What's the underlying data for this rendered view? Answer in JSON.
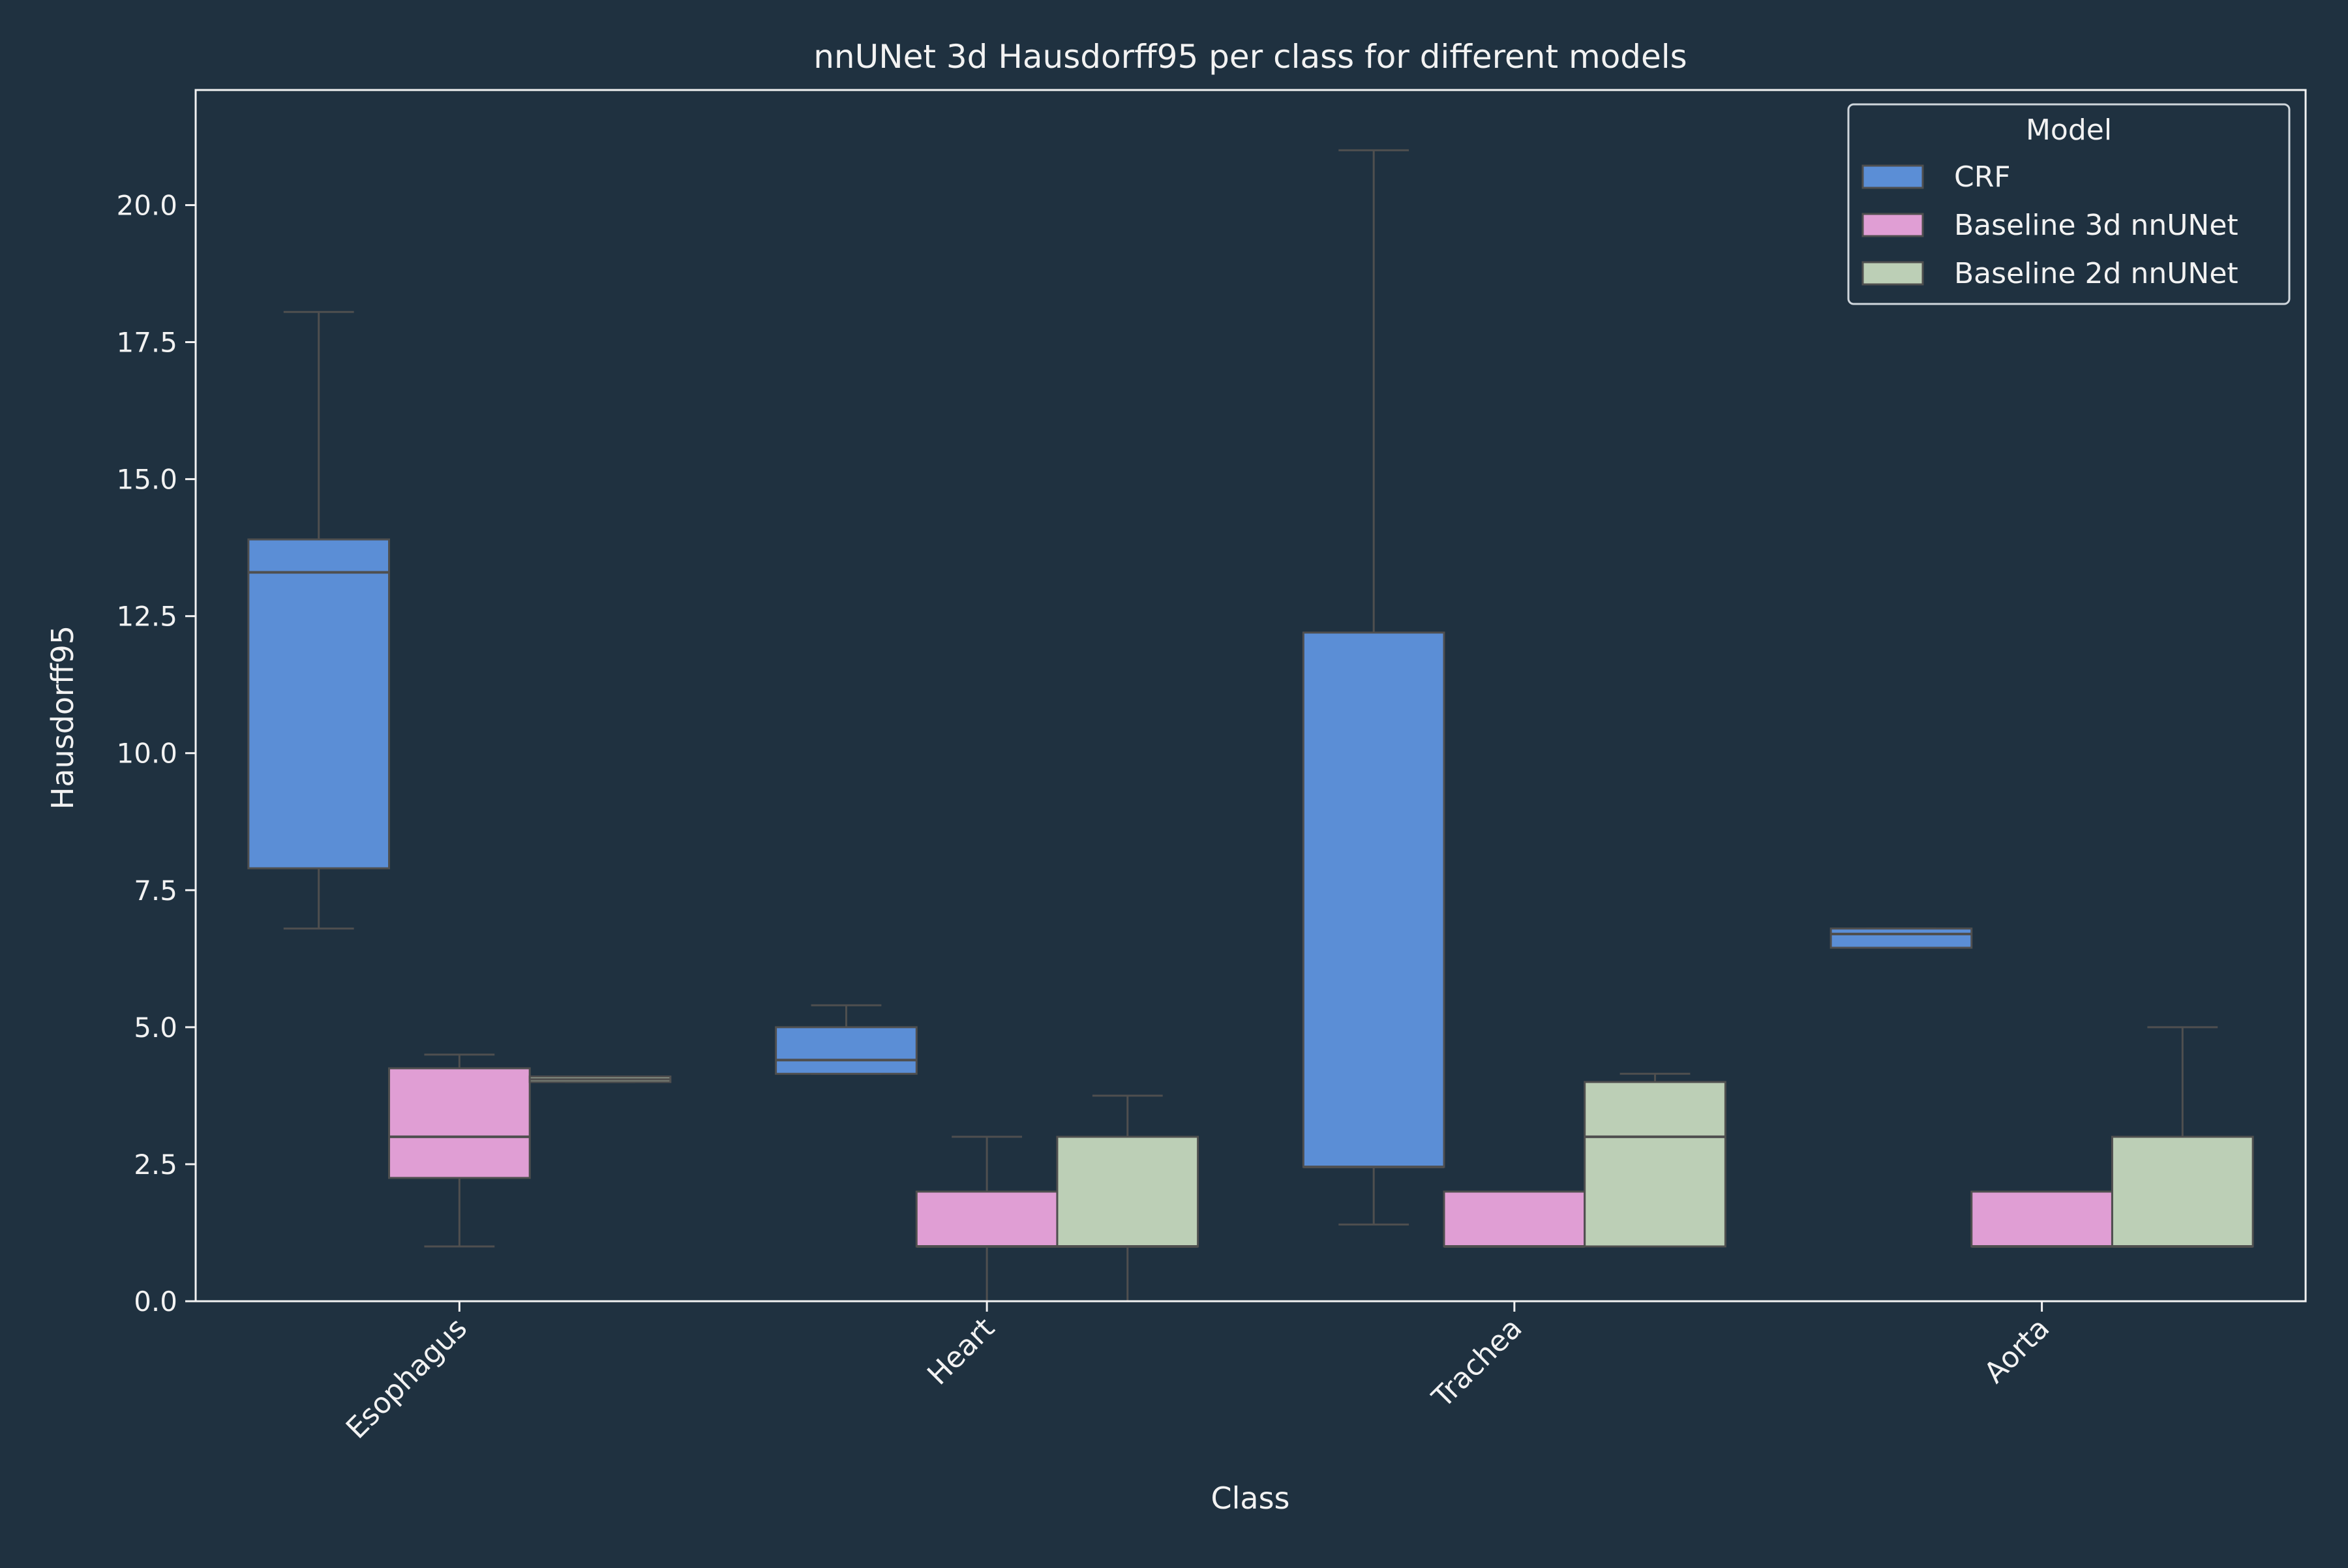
{
  "chart_data": {
    "type": "box",
    "title": "nnUNet 3d Hausdorff95 per class for different models",
    "xlabel": "Class",
    "ylabel": "Hausdorff95",
    "categories": [
      "Esophagus",
      "Heart",
      "Trachea",
      "Aorta"
    ],
    "ylim": [
      0,
      22.1
    ],
    "yticks": [
      0.0,
      2.5,
      5.0,
      7.5,
      10.0,
      12.5,
      15.0,
      17.5,
      20.0
    ],
    "ytick_labels": [
      "0.0",
      "2.5",
      "5.0",
      "7.5",
      "10.0",
      "12.5",
      "15.0",
      "17.5",
      "20.0"
    ],
    "legend": {
      "title": "Model",
      "position": "top-right"
    },
    "series": [
      {
        "name": "CRF",
        "color": "#5b8ed6",
        "boxes": [
          {
            "whisker_low": 6.8,
            "q1": 7.9,
            "median": 13.3,
            "q3": 13.9,
            "whisker_high": 18.05
          },
          {
            "whisker_low": 4.15,
            "q1": 4.15,
            "median": 4.4,
            "q3": 5.0,
            "whisker_high": 5.4
          },
          {
            "whisker_low": 1.4,
            "q1": 2.45,
            "median": 2.45,
            "q3": 12.2,
            "whisker_high": 21.0
          },
          {
            "whisker_low": 6.45,
            "q1": 6.45,
            "median": 6.7,
            "q3": 6.8,
            "whisker_high": 6.8
          }
        ]
      },
      {
        "name": "Baseline 3d nnUNet",
        "color": "#e09ed4",
        "boxes": [
          {
            "whisker_low": 1.0,
            "q1": 2.25,
            "median": 3.0,
            "q3": 4.25,
            "whisker_high": 4.5
          },
          {
            "whisker_low": 0.0,
            "q1": 1.0,
            "median": 1.0,
            "q3": 2.0,
            "whisker_high": 3.0
          },
          {
            "whisker_low": 1.0,
            "q1": 1.0,
            "median": 1.0,
            "q3": 2.0,
            "whisker_high": 2.0
          },
          {
            "whisker_low": 1.0,
            "q1": 1.0,
            "median": 1.0,
            "q3": 2.0,
            "whisker_high": 2.0
          }
        ]
      },
      {
        "name": "Baseline 2d nnUNet",
        "color": "#bccfb6",
        "boxes": [
          {
            "whisker_low": 4.0,
            "q1": 4.0,
            "median": 4.05,
            "q3": 4.1,
            "whisker_high": 4.1
          },
          {
            "whisker_low": 0.0,
            "q1": 1.0,
            "median": 1.0,
            "q3": 3.0,
            "whisker_high": 3.75
          },
          {
            "whisker_low": 1.0,
            "q1": 1.0,
            "median": 3.0,
            "q3": 4.0,
            "whisker_high": 4.15
          },
          {
            "whisker_low": 1.0,
            "q1": 1.0,
            "median": 1.0,
            "q3": 3.0,
            "whisker_high": 5.0
          }
        ]
      }
    ]
  }
}
